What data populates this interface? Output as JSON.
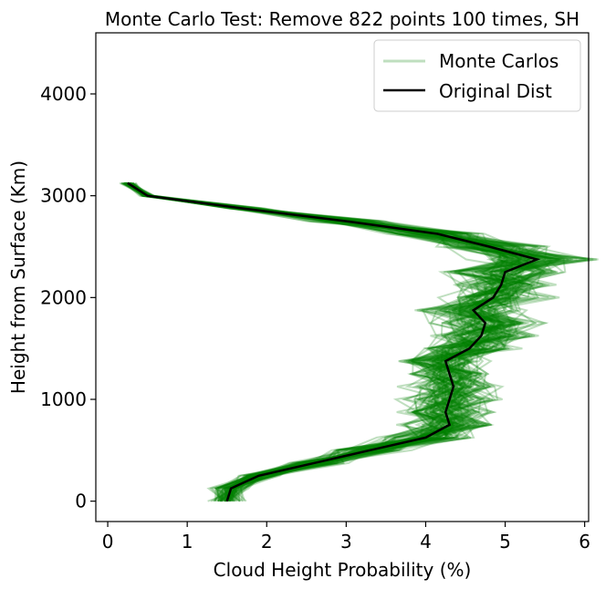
{
  "chart_data": {
    "type": "line",
    "title": "Monte Carlo Test: Remove 822 points 100 times, SH",
    "xlabel": "Cloud Height Probability (%)",
    "ylabel": "Height from Surface (Km)",
    "xlim": [
      -0.15,
      6.05
    ],
    "ylim": [
      -200,
      4600
    ],
    "xticks": [
      0,
      1,
      2,
      3,
      4,
      5,
      6
    ],
    "yticks": [
      0,
      1000,
      2000,
      3000,
      4000
    ],
    "grid": false,
    "legend": {
      "placement": "top-right",
      "entries": [
        "Monte Carlos",
        "Original Dist"
      ]
    },
    "series": [
      {
        "name": "Original Dist",
        "color": "#000000",
        "y": [
          0,
          125,
          250,
          375,
          500,
          625,
          750,
          875,
          1000,
          1125,
          1250,
          1375,
          1500,
          1625,
          1750,
          1875,
          2000,
          2125,
          2250,
          2375,
          2500,
          2625,
          2750,
          2875,
          3000,
          3125
        ],
        "x": [
          1.5,
          1.55,
          1.9,
          2.6,
          3.3,
          4.0,
          4.3,
          4.25,
          4.3,
          4.35,
          4.3,
          4.25,
          4.55,
          4.7,
          4.75,
          4.6,
          4.85,
          4.95,
          5.0,
          5.4,
          4.8,
          4.15,
          3.0,
          1.7,
          0.5,
          0.25
        ]
      },
      {
        "name": "Monte Carlos",
        "color": "#008000",
        "runs": 100,
        "opacity": 0.25,
        "y": [
          0,
          125,
          250,
          375,
          500,
          625,
          750,
          875,
          1000,
          1125,
          1250,
          1375,
          1500,
          1625,
          1750,
          1875,
          2000,
          2125,
          2250,
          2375,
          2500,
          2625,
          2750,
          2875,
          3000,
          3125
        ]
      }
    ]
  }
}
